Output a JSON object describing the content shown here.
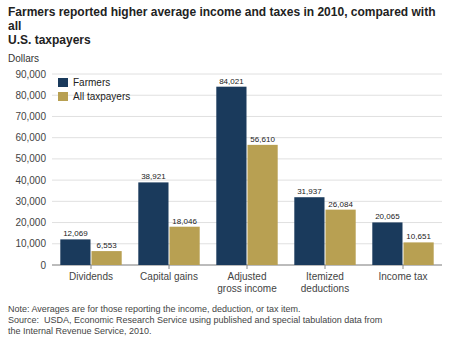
{
  "chart_data": {
    "type": "bar",
    "title": "Farmers reported higher average income and taxes in 2010, compared with all\nU.S. taxpayers",
    "ylabel": "Dollars",
    "categories": [
      "Dividends",
      "Capital gains",
      "Adjusted\ngross income",
      "Itemized\ndeductions",
      "Income tax"
    ],
    "series": [
      {
        "name": "Farmers",
        "color": "#1a3a5c",
        "values": [
          12069,
          38921,
          84021,
          31937,
          20065
        ],
        "value_labels": [
          "12,069",
          "38,921",
          "84,021",
          "31,937",
          "20,065"
        ]
      },
      {
        "name": "All taxpayers",
        "color": "#b8a052",
        "values": [
          6553,
          18046,
          56610,
          26084,
          10651
        ],
        "value_labels": [
          "6,553",
          "18,046",
          "56,610",
          "26,084",
          "10,651"
        ]
      }
    ],
    "ylim": [
      0,
      90000
    ],
    "yticks": [
      0,
      {
        "value": 10000,
        "label": "10,000"
      },
      {
        "value": 20000,
        "label": "20,000"
      },
      {
        "value": 30000,
        "label": "30,000"
      },
      {
        "value": 40000,
        "label": "40,000"
      },
      {
        "value": 50000,
        "label": "50,000"
      },
      {
        "value": 60000,
        "label": "60,000"
      },
      {
        "value": 70000,
        "label": "70,000"
      },
      {
        "value": 80000,
        "label": "80,000"
      },
      {
        "value": 90000,
        "label": "90,000"
      }
    ],
    "grid": true,
    "legend": "upper left",
    "data_labels": true,
    "annotations": [
      "Note: Averages are for those reporting the income, deduction, or tax item.",
      "Source:  USDA, Economic Research Service using published and special tabulation data from\nthe Internal Revenue Service, 2010."
    ]
  }
}
